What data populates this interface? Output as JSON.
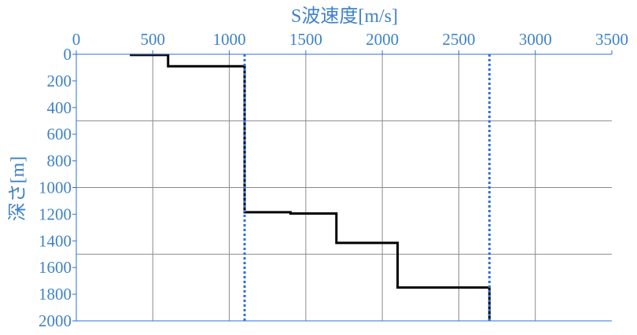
{
  "chart_data": {
    "type": "line",
    "title": "",
    "xlabel": "S波速度[m/s]",
    "ylabel": "深さ[m]",
    "x_axis_position": "top",
    "y_axis_inverted": true,
    "xlim": [
      0,
      3500
    ],
    "ylim": [
      0,
      2000
    ],
    "x_ticks": [
      0,
      500,
      1000,
      1500,
      2000,
      2500,
      3000,
      3500
    ],
    "y_ticks": [
      0,
      200,
      400,
      600,
      800,
      1000,
      1200,
      1400,
      1600,
      1800,
      2000
    ],
    "x_gridlines": [
      500,
      1000,
      1500,
      2000,
      2500,
      3000
    ],
    "y_gridlines": [
      500,
      1000,
      1500
    ],
    "grid": true,
    "series": [
      {
        "style": "solid",
        "color": "#000000",
        "points": [
          [
            350,
            5
          ],
          [
            600,
            5
          ],
          [
            600,
            90
          ],
          [
            1100,
            90
          ],
          [
            1100,
            1185
          ],
          [
            1400,
            1185
          ],
          [
            1400,
            1195
          ],
          [
            1700,
            1195
          ],
          [
            1700,
            1415
          ],
          [
            2100,
            1415
          ],
          [
            2100,
            1750
          ],
          [
            2700,
            1750
          ],
          [
            2700,
            2000
          ]
        ]
      },
      {
        "style": "dotted",
        "color": "#2E6FD8",
        "points": [
          [
            1100,
            0
          ],
          [
            1100,
            2000
          ]
        ]
      },
      {
        "style": "dotted",
        "color": "#2E6FD8",
        "points": [
          [
            2700,
            0
          ],
          [
            2700,
            2000
          ]
        ]
      }
    ],
    "colors": {
      "label": "#3E82C8",
      "grid": "#8a8a8a",
      "axis": "#2E6FD8"
    }
  }
}
